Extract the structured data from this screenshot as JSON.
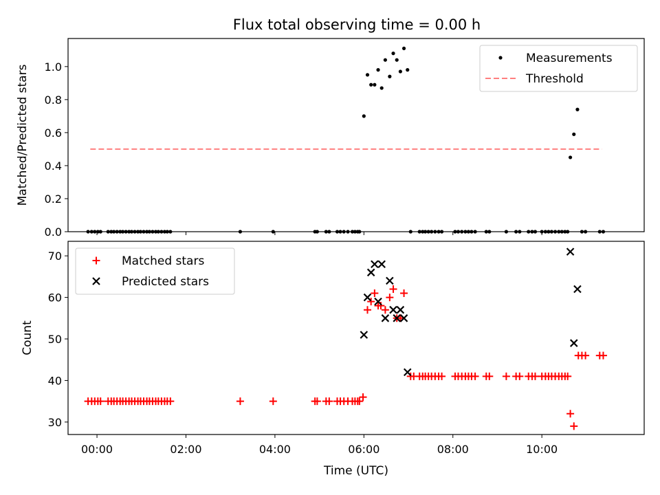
{
  "title": "Flux total observing time = 0.00 h",
  "chart_data": [
    {
      "type": "scatter",
      "title": "Flux total observing time = 0.00 h",
      "xlabel": "",
      "ylabel": "Matched/Predicted stars",
      "xlim": [
        -0.65,
        12.3
      ],
      "ylim": [
        0,
        1.17
      ],
      "y_ticks": [
        0.0,
        0.2,
        0.4,
        0.6,
        0.8,
        1.0
      ],
      "y_tick_labels": [
        "0.0",
        "0.2",
        "0.4",
        "0.6",
        "0.8",
        "1.0"
      ],
      "x_ticks": [
        0,
        2,
        4,
        6,
        8,
        10
      ],
      "show_x_tick_labels": false,
      "legend": {
        "position": "upper right",
        "entries": [
          "Measurements",
          "Threshold"
        ]
      },
      "series": [
        {
          "name": "Measurements",
          "marker": "dot",
          "color": "#000000",
          "points": [
            [
              -0.2,
              0
            ],
            [
              -0.12,
              0
            ],
            [
              -0.05,
              0
            ],
            [
              0.02,
              0
            ],
            [
              0.08,
              0
            ],
            [
              0.25,
              0
            ],
            [
              0.32,
              0
            ],
            [
              0.38,
              0
            ],
            [
              0.45,
              0
            ],
            [
              0.52,
              0
            ],
            [
              0.58,
              0
            ],
            [
              0.65,
              0
            ],
            [
              0.72,
              0
            ],
            [
              0.78,
              0
            ],
            [
              0.85,
              0
            ],
            [
              0.92,
              0
            ],
            [
              0.98,
              0
            ],
            [
              1.05,
              0
            ],
            [
              1.12,
              0
            ],
            [
              1.18,
              0
            ],
            [
              1.25,
              0
            ],
            [
              1.32,
              0
            ],
            [
              1.38,
              0
            ],
            [
              1.45,
              0
            ],
            [
              1.52,
              0
            ],
            [
              1.58,
              0
            ],
            [
              1.65,
              0
            ],
            [
              3.22,
              0
            ],
            [
              3.96,
              0
            ],
            [
              4.9,
              0
            ],
            [
              4.95,
              0
            ],
            [
              5.15,
              0
            ],
            [
              5.22,
              0
            ],
            [
              5.4,
              0
            ],
            [
              5.47,
              0
            ],
            [
              5.55,
              0
            ],
            [
              5.64,
              0
            ],
            [
              5.74,
              0
            ],
            [
              5.8,
              0
            ],
            [
              5.86,
              0
            ],
            [
              5.9,
              0
            ],
            [
              6.0,
              0.7
            ],
            [
              6.08,
              0.95
            ],
            [
              6.16,
              0.89
            ],
            [
              6.24,
              0.89
            ],
            [
              6.32,
              0.98
            ],
            [
              6.4,
              0.87
            ],
            [
              6.48,
              1.04
            ],
            [
              6.58,
              0.94
            ],
            [
              6.66,
              1.08
            ],
            [
              6.74,
              1.04
            ],
            [
              6.82,
              0.97
            ],
            [
              6.9,
              1.11
            ],
            [
              6.98,
              0.98
            ],
            [
              7.05,
              0
            ],
            [
              7.25,
              0
            ],
            [
              7.32,
              0
            ],
            [
              7.38,
              0
            ],
            [
              7.45,
              0
            ],
            [
              7.52,
              0
            ],
            [
              7.6,
              0
            ],
            [
              7.68,
              0
            ],
            [
              7.75,
              0
            ],
            [
              8.05,
              0
            ],
            [
              8.12,
              0
            ],
            [
              8.2,
              0
            ],
            [
              8.28,
              0
            ],
            [
              8.35,
              0
            ],
            [
              8.42,
              0
            ],
            [
              8.5,
              0
            ],
            [
              8.75,
              0
            ],
            [
              8.82,
              0
            ],
            [
              9.2,
              0
            ],
            [
              9.42,
              0
            ],
            [
              9.5,
              0
            ],
            [
              9.7,
              0
            ],
            [
              9.78,
              0
            ],
            [
              9.85,
              0
            ],
            [
              10.0,
              0
            ],
            [
              10.08,
              0
            ],
            [
              10.15,
              0
            ],
            [
              10.22,
              0
            ],
            [
              10.3,
              0
            ],
            [
              10.38,
              0
            ],
            [
              10.45,
              0
            ],
            [
              10.52,
              0
            ],
            [
              10.58,
              0
            ],
            [
              10.64,
              0.45
            ],
            [
              10.72,
              0.59
            ],
            [
              10.8,
              0.74
            ],
            [
              10.9,
              0
            ],
            [
              10.98,
              0
            ],
            [
              11.3,
              0
            ],
            [
              11.38,
              0
            ]
          ]
        },
        {
          "name": "Threshold",
          "style": "dashed",
          "color": "#ff7f7f",
          "x": [
            -0.15,
            11.35
          ],
          "y": [
            0.5,
            0.5
          ]
        }
      ]
    },
    {
      "type": "scatter",
      "title": "",
      "xlabel": "Time (UTC)",
      "ylabel": "Count",
      "xlim": [
        -0.65,
        12.3
      ],
      "ylim": [
        27,
        73.5
      ],
      "y_ticks": [
        30,
        40,
        50,
        60,
        70
      ],
      "y_tick_labels": [
        "30",
        "40",
        "50",
        "60",
        "70"
      ],
      "x_ticks": [
        0,
        2,
        4,
        6,
        8,
        10
      ],
      "x_tick_labels": [
        "00:00",
        "02:00",
        "04:00",
        "06:00",
        "08:00",
        "10:00"
      ],
      "legend": {
        "position": "upper left",
        "entries": [
          "Matched stars",
          "Predicted stars"
        ]
      },
      "series": [
        {
          "name": "Matched stars",
          "marker": "plus",
          "color": "#ff0000",
          "points": [
            [
              -0.2,
              35
            ],
            [
              -0.12,
              35
            ],
            [
              -0.05,
              35
            ],
            [
              0.02,
              35
            ],
            [
              0.08,
              35
            ],
            [
              0.25,
              35
            ],
            [
              0.32,
              35
            ],
            [
              0.38,
              35
            ],
            [
              0.45,
              35
            ],
            [
              0.52,
              35
            ],
            [
              0.58,
              35
            ],
            [
              0.65,
              35
            ],
            [
              0.72,
              35
            ],
            [
              0.78,
              35
            ],
            [
              0.85,
              35
            ],
            [
              0.92,
              35
            ],
            [
              0.98,
              35
            ],
            [
              1.05,
              35
            ],
            [
              1.12,
              35
            ],
            [
              1.18,
              35
            ],
            [
              1.25,
              35
            ],
            [
              1.32,
              35
            ],
            [
              1.38,
              35
            ],
            [
              1.45,
              35
            ],
            [
              1.52,
              35
            ],
            [
              1.58,
              35
            ],
            [
              1.65,
              35
            ],
            [
              3.22,
              35
            ],
            [
              3.96,
              35
            ],
            [
              4.9,
              35
            ],
            [
              4.95,
              35
            ],
            [
              5.15,
              35
            ],
            [
              5.22,
              35
            ],
            [
              5.4,
              35
            ],
            [
              5.47,
              35
            ],
            [
              5.55,
              35
            ],
            [
              5.64,
              35
            ],
            [
              5.74,
              35
            ],
            [
              5.8,
              35
            ],
            [
              5.86,
              35
            ],
            [
              5.9,
              35
            ],
            [
              5.98,
              36
            ],
            [
              6.08,
              57
            ],
            [
              6.16,
              59
            ],
            [
              6.24,
              61
            ],
            [
              6.32,
              58
            ],
            [
              6.38,
              58
            ],
            [
              6.48,
              57
            ],
            [
              6.58,
              60
            ],
            [
              6.66,
              62
            ],
            [
              6.74,
              55
            ],
            [
              6.82,
              55
            ],
            [
              6.9,
              61
            ],
            [
              7.05,
              41
            ],
            [
              7.12,
              41
            ],
            [
              7.25,
              41
            ],
            [
              7.32,
              41
            ],
            [
              7.38,
              41
            ],
            [
              7.45,
              41
            ],
            [
              7.52,
              41
            ],
            [
              7.6,
              41
            ],
            [
              7.68,
              41
            ],
            [
              7.75,
              41
            ],
            [
              8.05,
              41
            ],
            [
              8.12,
              41
            ],
            [
              8.2,
              41
            ],
            [
              8.28,
              41
            ],
            [
              8.35,
              41
            ],
            [
              8.42,
              41
            ],
            [
              8.5,
              41
            ],
            [
              8.75,
              41
            ],
            [
              8.82,
              41
            ],
            [
              9.2,
              41
            ],
            [
              9.42,
              41
            ],
            [
              9.5,
              41
            ],
            [
              9.7,
              41
            ],
            [
              9.78,
              41
            ],
            [
              9.85,
              41
            ],
            [
              10.0,
              41
            ],
            [
              10.08,
              41
            ],
            [
              10.15,
              41
            ],
            [
              10.22,
              41
            ],
            [
              10.3,
              41
            ],
            [
              10.38,
              41
            ],
            [
              10.45,
              41
            ],
            [
              10.52,
              41
            ],
            [
              10.58,
              41
            ],
            [
              10.64,
              32
            ],
            [
              10.72,
              29
            ],
            [
              10.82,
              46
            ],
            [
              10.9,
              46
            ],
            [
              10.98,
              46
            ],
            [
              11.3,
              46
            ],
            [
              11.38,
              46
            ]
          ]
        },
        {
          "name": "Predicted stars",
          "marker": "x",
          "color": "#000000",
          "points": [
            [
              6.0,
              51
            ],
            [
              6.08,
              60
            ],
            [
              6.16,
              66
            ],
            [
              6.24,
              68
            ],
            [
              6.32,
              59
            ],
            [
              6.4,
              68
            ],
            [
              6.48,
              55
            ],
            [
              6.58,
              64
            ],
            [
              6.66,
              57
            ],
            [
              6.74,
              55
            ],
            [
              6.82,
              57
            ],
            [
              6.9,
              55
            ],
            [
              6.98,
              42
            ],
            [
              10.64,
              71
            ],
            [
              10.72,
              49
            ],
            [
              10.8,
              62
            ]
          ]
        }
      ]
    }
  ]
}
